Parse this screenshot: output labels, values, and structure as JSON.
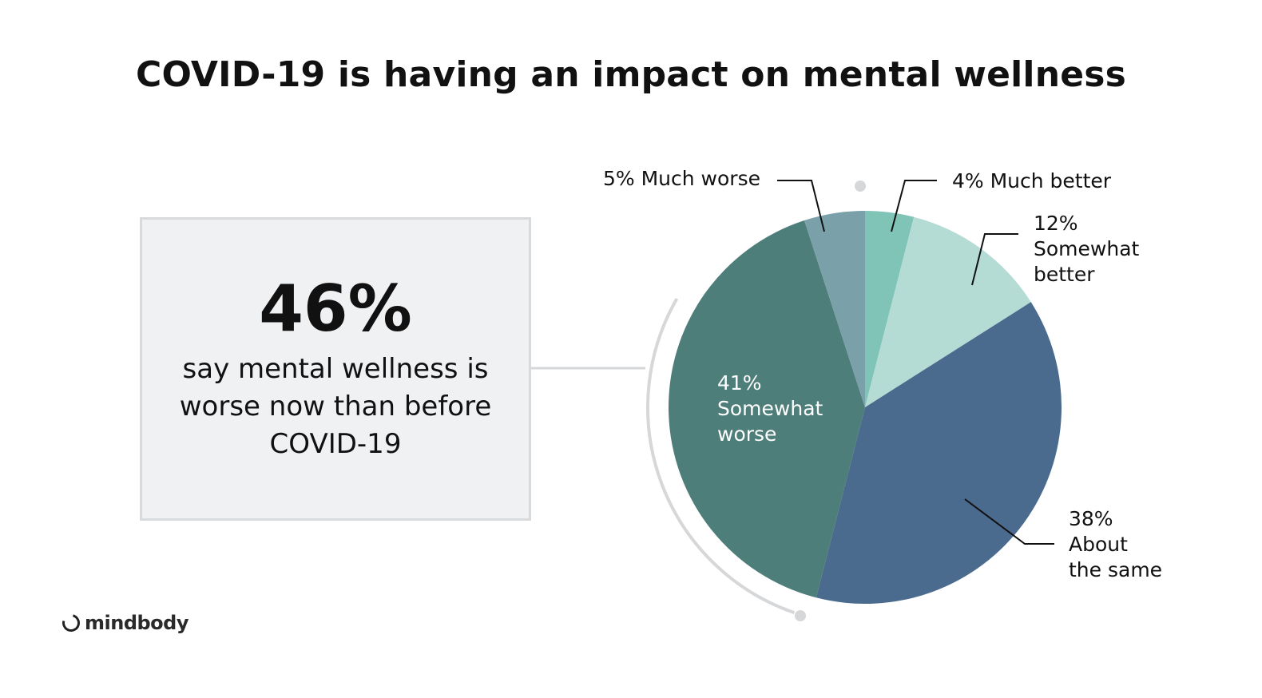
{
  "header": {
    "title": "COVID-19 is having an impact on mental wellness"
  },
  "callout": {
    "stat": "46%",
    "text": "say mental wellness is worse now than before COVID-19"
  },
  "brand": {
    "name": "mindbody",
    "icon": "ring-logo-icon"
  },
  "chart_data": {
    "type": "pie",
    "start": "12 o'clock",
    "direction": "clockwise",
    "slices": [
      {
        "pct_label": "4%",
        "value": 4,
        "label_lines": [
          "Much better"
        ],
        "color": "#80c4b8",
        "label_position": "outside-top-right"
      },
      {
        "pct_label": "12%",
        "value": 12,
        "label_lines": [
          "Somewhat",
          "better"
        ],
        "color": "#b5dbd5",
        "label_position": "outside-right"
      },
      {
        "pct_label": "38%",
        "value": 38,
        "label_lines": [
          "About",
          "the same"
        ],
        "color": "#4a6a8e",
        "label_position": "outside-bottom-right"
      },
      {
        "pct_label": "41%",
        "value": 41,
        "label_lines": [
          "Somewhat",
          "worse"
        ],
        "color": "#4e7e79",
        "label_position": "inside"
      },
      {
        "pct_label": "5%",
        "value": 5,
        "label_lines": [
          "Much worse"
        ],
        "color": "#7aa0aa",
        "label_position": "outside-top-left"
      }
    ]
  }
}
